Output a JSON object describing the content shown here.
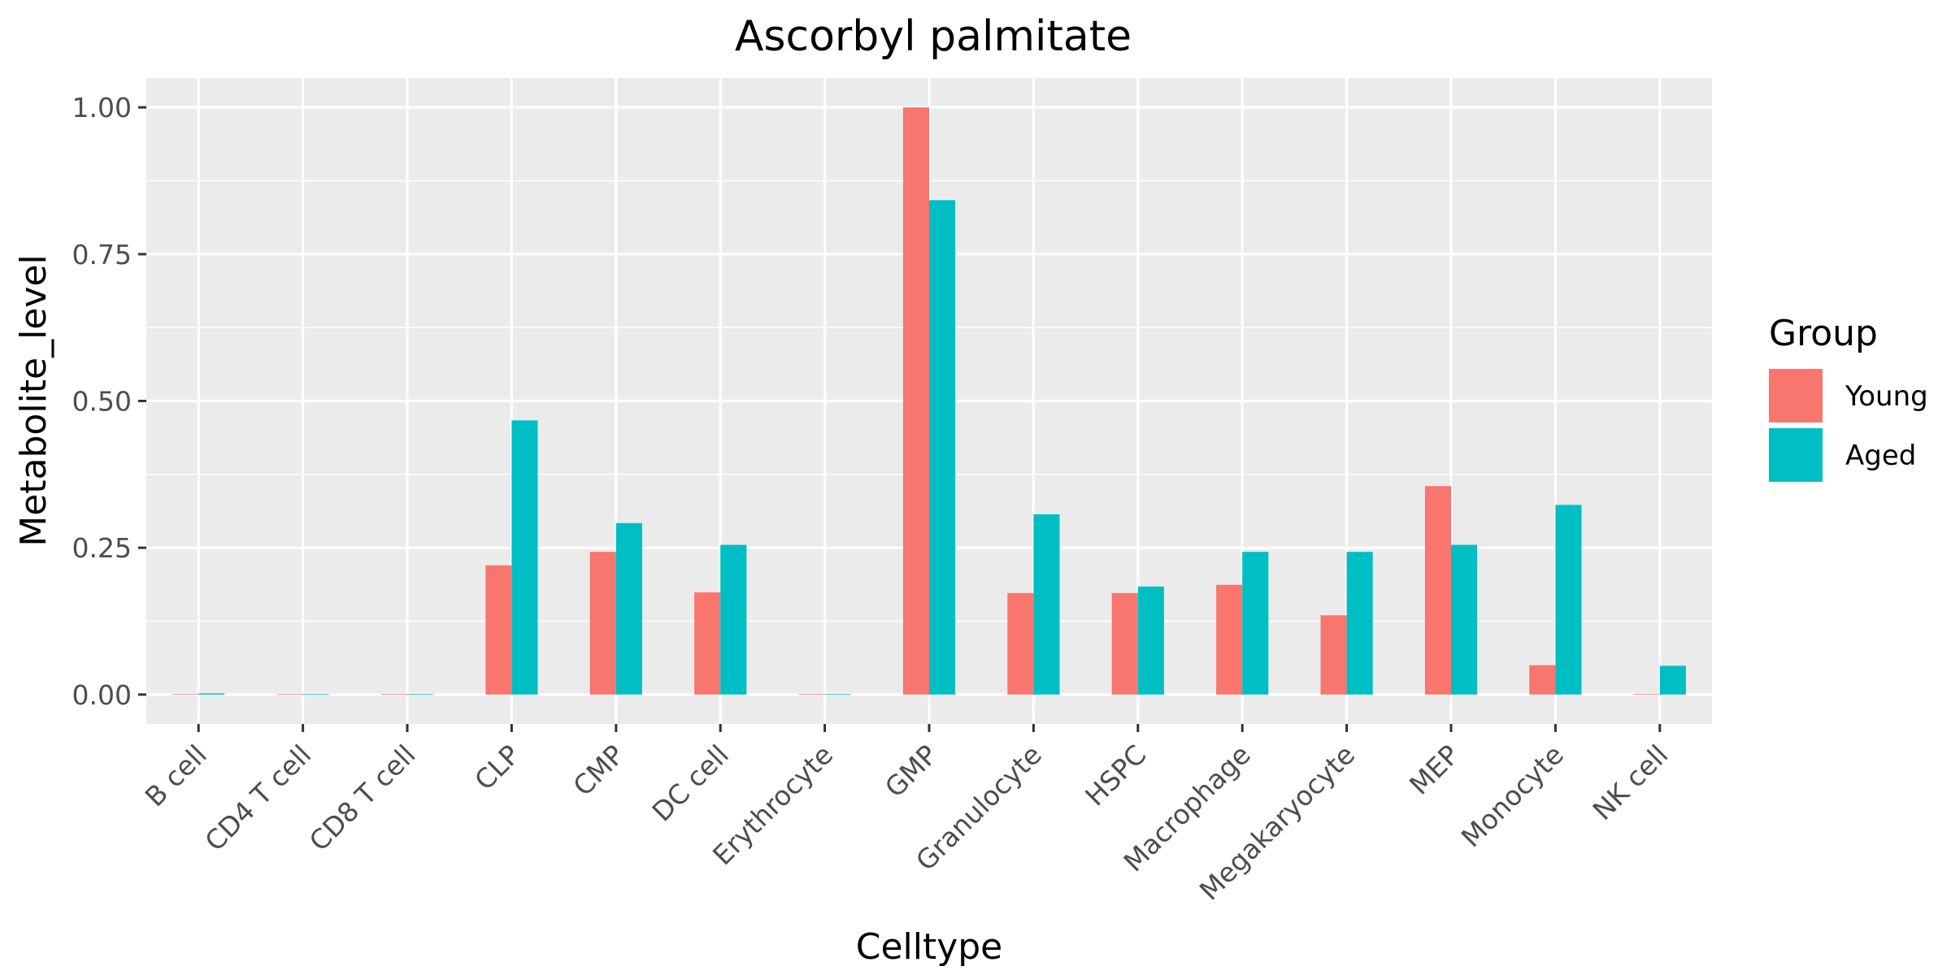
{
  "chart_data": {
    "type": "bar",
    "title": "Ascorbyl palmitate",
    "xlabel": "Celltype",
    "ylabel": "Metabolite_level",
    "ylim": [
      -0.05,
      1.05
    ],
    "yticks": [
      0.0,
      0.25,
      0.5,
      0.75,
      1.0
    ],
    "ytick_labels": [
      "0.00",
      "0.25",
      "0.50",
      "0.75",
      "1.00"
    ],
    "grid": true,
    "legend_position": "right",
    "legend_title": "Group",
    "categories": [
      "B cell",
      "CD4 T cell",
      "CD8 T cell",
      "CLP",
      "CMP",
      "DC cell",
      "Erythrocyte",
      "GMP",
      "Granulocyte",
      "HSPC",
      "Macrophage",
      "Megakaryocyte",
      "MEP",
      "Monocyte",
      "NK cell"
    ],
    "series": [
      {
        "name": "Young",
        "color": "#F8766D",
        "values": [
          0,
          0,
          0,
          0.22,
          0.243,
          0.174,
          0,
          1.0,
          0.173,
          0.173,
          0.187,
          0.135,
          0.355,
          0.05,
          0.001
        ]
      },
      {
        "name": "Aged",
        "color": "#00BFC4",
        "values": [
          0.002,
          0,
          0,
          0.467,
          0.292,
          0.255,
          0,
          0.842,
          0.307,
          0.184,
          0.243,
          0.243,
          0.255,
          0.323,
          0.049
        ]
      }
    ]
  }
}
